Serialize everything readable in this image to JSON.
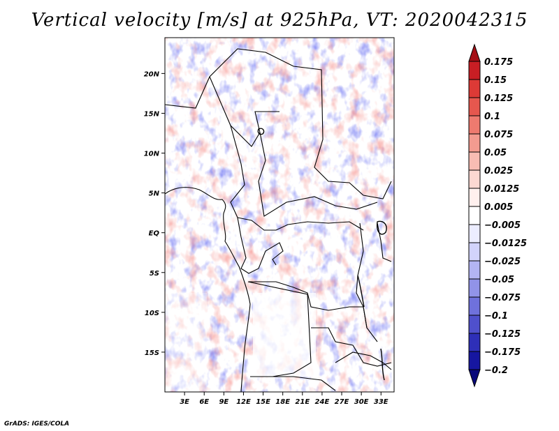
{
  "chart_data": {
    "type": "heatmap",
    "title": "Vertical velocity [m/s] at 925hPa, VT: 2020042315",
    "variable": "Vertical velocity",
    "units": "m/s",
    "level": "925hPa",
    "valid_time": "2020042315",
    "xlim": [
      0,
      35
    ],
    "ylim": [
      -20,
      24.5
    ],
    "x_ticks": [
      3,
      6,
      9,
      12,
      15,
      18,
      21,
      24,
      27,
      30,
      33
    ],
    "x_tick_labels": [
      "3E",
      "6E",
      "9E",
      "12E",
      "15E",
      "18E",
      "21E",
      "24E",
      "27E",
      "30E",
      "33E"
    ],
    "y_ticks": [
      20,
      15,
      10,
      5,
      0,
      -5,
      -10,
      -15
    ],
    "y_tick_labels": [
      "20N",
      "15N",
      "10N",
      "5N",
      "EQ",
      "5S",
      "10S",
      "15S"
    ],
    "colorbar": {
      "levels": [
        0.175,
        0.15,
        0.125,
        0.1,
        0.075,
        0.05,
        0.025,
        0.0125,
        0.005,
        -0.005,
        -0.0125,
        -0.025,
        -0.05,
        -0.075,
        -0.1,
        -0.125,
        -0.175,
        -0.2
      ],
      "labels": [
        "0.175",
        "0.15",
        "0.125",
        "0.1",
        "0.075",
        "0.05",
        "0.025",
        "0.0125",
        "0.005",
        "−0.005",
        "−0.0125",
        "−0.025",
        "−0.05",
        "−0.075",
        "−0.1",
        "−0.125",
        "−0.175",
        "−0.2"
      ],
      "colors": [
        "#a50f15",
        "#c81e24",
        "#dd3a36",
        "#e6574e",
        "#ee7a6f",
        "#f39b90",
        "#f8bcb3",
        "#fcd8d2",
        "#fff0ee",
        "#ffffff",
        "#ecedff",
        "#d2d3fb",
        "#b3b4f3",
        "#9193e8",
        "#6f71dc",
        "#4f50cc",
        "#2e2fb8",
        "#1616a0",
        "#08087a"
      ]
    }
  },
  "credit": "GrADS: IGES/COLA"
}
